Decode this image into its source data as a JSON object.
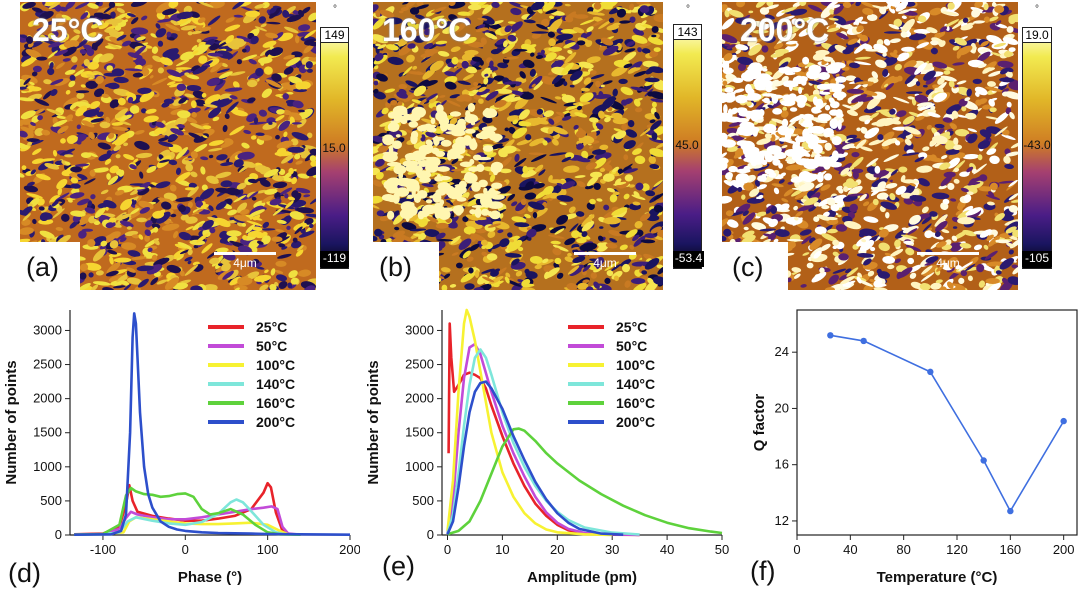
{
  "afm": [
    {
      "label": "(a)",
      "temp": "25°C",
      "scale": "4μm",
      "cb_top": "149",
      "cb_mid": "15.0",
      "cb_bot": "-119",
      "cb_unit": "°"
    },
    {
      "label": "(b)",
      "temp": "160°C",
      "scale": "4μm",
      "cb_top": "143",
      "cb_mid": "45.0",
      "cb_bot": "-53.4",
      "cb_unit": "°"
    },
    {
      "label": "(c)",
      "temp": "200°C",
      "scale": "4μm",
      "cb_top": "19.0",
      "cb_mid": "-43.0",
      "cb_bot": "-105",
      "cb_unit": "°"
    }
  ],
  "chart_data": [
    {
      "panel": "(d)",
      "type": "line",
      "xlabel": "Phase (°)",
      "ylabel": "Number of points",
      "xlim": [
        -140,
        200
      ],
      "ylim": [
        0,
        3300
      ],
      "xticks": [
        -100,
        0,
        100,
        200
      ],
      "yticks": [
        0,
        500,
        1000,
        1500,
        2000,
        2500,
        3000
      ],
      "series": [
        {
          "name": "25°C",
          "color": "#e8232a",
          "x": [
            -135,
            -100,
            -80,
            -72,
            -68,
            -64,
            -58,
            -40,
            -20,
            0,
            20,
            40,
            60,
            80,
            95,
            100,
            104,
            110,
            118,
            125,
            140
          ],
          "y": [
            10,
            20,
            120,
            450,
            730,
            500,
            340,
            280,
            240,
            210,
            210,
            240,
            280,
            380,
            620,
            760,
            700,
            330,
            60,
            15,
            5
          ]
        },
        {
          "name": "50°C",
          "color": "#c24bd8",
          "x": [
            -135,
            -100,
            -80,
            -72,
            -66,
            -58,
            -40,
            -20,
            0,
            20,
            40,
            60,
            80,
            95,
            105,
            112,
            118,
            125,
            140
          ],
          "y": [
            5,
            15,
            90,
            250,
            340,
            300,
            260,
            230,
            230,
            260,
            300,
            340,
            380,
            400,
            420,
            380,
            120,
            20,
            5
          ]
        },
        {
          "name": "100°C",
          "color": "#f7f232",
          "x": [
            -135,
            -100,
            -75,
            -68,
            -60,
            -40,
            -20,
            0,
            20,
            40,
            60,
            80,
            100,
            115,
            125,
            140
          ],
          "y": [
            5,
            10,
            40,
            200,
            260,
            230,
            200,
            170,
            160,
            160,
            170,
            180,
            150,
            60,
            10,
            5
          ]
        },
        {
          "name": "140°C",
          "color": "#7ee6da",
          "x": [
            -135,
            -100,
            -80,
            -70,
            -60,
            -40,
            -20,
            0,
            20,
            40,
            55,
            62,
            70,
            80,
            95,
            110,
            120,
            140
          ],
          "y": [
            5,
            10,
            40,
            200,
            260,
            210,
            170,
            150,
            190,
            310,
            480,
            520,
            480,
            350,
            150,
            40,
            10,
            5
          ]
        },
        {
          "name": "160°C",
          "color": "#5ed23c",
          "x": [
            -135,
            -100,
            -80,
            -72,
            -66,
            -60,
            -50,
            -40,
            -30,
            -20,
            -10,
            0,
            10,
            20,
            30,
            40,
            55,
            70,
            85,
            100,
            115,
            140
          ],
          "y": [
            5,
            15,
            150,
            580,
            690,
            640,
            600,
            590,
            560,
            570,
            600,
            610,
            560,
            380,
            300,
            320,
            380,
            300,
            150,
            40,
            10,
            5
          ]
        },
        {
          "name": "200°C",
          "color": "#2d4fcb",
          "x": [
            -135,
            -90,
            -78,
            -72,
            -67,
            -64,
            -62,
            -60,
            -58,
            -55,
            -50,
            -45,
            -40,
            -30,
            -20,
            -10,
            0,
            20,
            40,
            60,
            80,
            100,
            140,
            200
          ],
          "y": [
            5,
            10,
            60,
            300,
            1500,
            2900,
            3250,
            3100,
            2600,
            1800,
            1000,
            600,
            400,
            200,
            120,
            80,
            60,
            40,
            30,
            25,
            20,
            15,
            10,
            5
          ]
        }
      ]
    },
    {
      "panel": "(e)",
      "type": "line",
      "xlabel": "Amplitude (pm)",
      "ylabel": "Number of points",
      "xlim": [
        -1,
        50
      ],
      "ylim": [
        0,
        3300
      ],
      "xticks": [
        0,
        10,
        20,
        30,
        40,
        50
      ],
      "yticks": [
        0,
        500,
        1000,
        1500,
        2000,
        2500,
        3000
      ],
      "series": [
        {
          "name": "25°C",
          "color": "#e8232a",
          "x": [
            0.2,
            0.4,
            0.7,
            1.2,
            2,
            3,
            4,
            5,
            6,
            7,
            8,
            10,
            12,
            14,
            16,
            18,
            20,
            22,
            24,
            26,
            30,
            35
          ],
          "y": [
            1200,
            3100,
            2600,
            2100,
            2200,
            2350,
            2380,
            2350,
            2300,
            2150,
            1900,
            1450,
            1050,
            720,
            460,
            280,
            150,
            70,
            30,
            15,
            5,
            2
          ]
        },
        {
          "name": "50°C",
          "color": "#c24bd8",
          "x": [
            0,
            1,
            2,
            3,
            4,
            5,
            6,
            8,
            10,
            12,
            14,
            16,
            18,
            20,
            22,
            25,
            30,
            35
          ],
          "y": [
            20,
            500,
            1500,
            2300,
            2750,
            2800,
            2650,
            2100,
            1600,
            1200,
            860,
            560,
            330,
            180,
            90,
            30,
            8,
            2
          ]
        },
        {
          "name": "100°C",
          "color": "#f7f232",
          "x": [
            0,
            1,
            2,
            3,
            3.5,
            4,
            5,
            6,
            8,
            10,
            12,
            14,
            16,
            18,
            20,
            25,
            30
          ],
          "y": [
            60,
            800,
            2100,
            3100,
            3300,
            3200,
            2850,
            2400,
            1500,
            920,
            560,
            320,
            170,
            80,
            40,
            10,
            2
          ]
        },
        {
          "name": "140°C",
          "color": "#7ee6da",
          "x": [
            0,
            1,
            2,
            3,
            4,
            5,
            6,
            7,
            8,
            10,
            12,
            14,
            16,
            18,
            20,
            22,
            25,
            30,
            35
          ],
          "y": [
            20,
            300,
            900,
            1600,
            2200,
            2600,
            2720,
            2600,
            2350,
            1800,
            1350,
            1000,
            720,
            500,
            340,
            220,
            110,
            35,
            8
          ]
        },
        {
          "name": "160°C",
          "color": "#5ed23c",
          "x": [
            0,
            2,
            4,
            6,
            8,
            10,
            12,
            13,
            14,
            16,
            18,
            20,
            24,
            28,
            32,
            36,
            40,
            44,
            48,
            50
          ],
          "y": [
            10,
            60,
            200,
            500,
            900,
            1300,
            1550,
            1560,
            1530,
            1380,
            1200,
            1050,
            800,
            600,
            430,
            290,
            180,
            100,
            50,
            30
          ]
        },
        {
          "name": "200°C",
          "color": "#2d4fcb",
          "x": [
            0,
            1,
            2,
            3,
            4,
            5,
            6,
            7,
            8,
            10,
            12,
            14,
            16,
            18,
            20,
            22,
            24,
            28,
            32
          ],
          "y": [
            10,
            200,
            700,
            1300,
            1800,
            2100,
            2230,
            2250,
            2150,
            1850,
            1450,
            1100,
            780,
            520,
            320,
            180,
            90,
            20,
            5
          ]
        }
      ]
    },
    {
      "panel": "(f)",
      "type": "line",
      "xlabel": "Temperature (°C)",
      "ylabel": "Q factor",
      "xlim": [
        0,
        210
      ],
      "ylim": [
        11,
        27
      ],
      "xticks": [
        0,
        40,
        80,
        120,
        160,
        200
      ],
      "yticks": [
        12,
        16,
        20,
        24
      ],
      "series": [
        {
          "name": "Q factor",
          "color": "#3f6fe0",
          "x": [
            25,
            50,
            100,
            140,
            160,
            200
          ],
          "y": [
            25.2,
            24.8,
            22.6,
            16.3,
            12.7,
            19.1
          ]
        }
      ]
    }
  ]
}
